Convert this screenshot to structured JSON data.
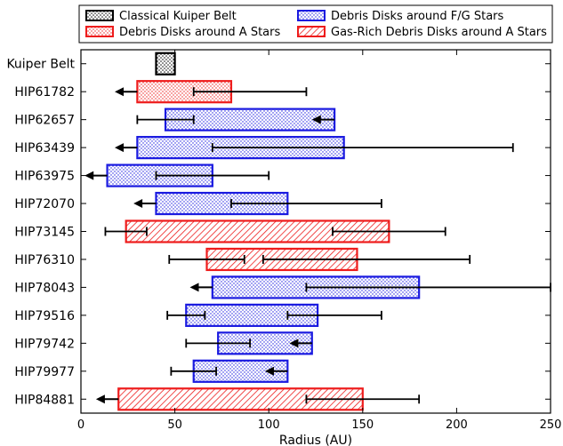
{
  "chart_data": {
    "type": "bar",
    "orientation": "horizontal-range",
    "title": "",
    "xlabel": "Radius (AU)",
    "ylabel": "",
    "xlim": [
      0,
      250
    ],
    "xticks": [
      0,
      50,
      100,
      150,
      200,
      250
    ],
    "grid": false,
    "legend_position": "top",
    "colors": {
      "kuiper": "#000000",
      "a_star": "#ee1c1c",
      "fg_star": "#1a1ae0"
    },
    "legend": [
      {
        "label": "Classical Kuiper Belt",
        "kind": "kuiper"
      },
      {
        "label": "Debris Disks around F/G Stars",
        "kind": "fg"
      },
      {
        "label": "Debris Disks around A Stars",
        "kind": "a"
      },
      {
        "label": "Gas-Rich Debris Disks around A Stars",
        "kind": "gas"
      }
    ],
    "categories": [
      "Kuiper Belt",
      "HIP61782",
      "HIP62657",
      "HIP63439",
      "HIP63975",
      "HIP72070",
      "HIP73145",
      "HIP76310",
      "HIP78043",
      "HIP79516",
      "HIP79742",
      "HIP79977",
      "HIP84881"
    ],
    "disks": [
      {
        "name": "Kuiper Belt",
        "kind": "kuiper",
        "inner": 40,
        "outer": 50,
        "inner_err": null,
        "outer_err": null
      },
      {
        "name": "HIP61782",
        "kind": "a",
        "inner": 30,
        "outer": 80,
        "inner_err": {
          "upper_limit": 18
        },
        "outer_err": {
          "lo": 60,
          "hi": 120
        }
      },
      {
        "name": "HIP62657",
        "kind": "fg",
        "inner": 45,
        "outer": 135,
        "inner_err": {
          "lo": 30,
          "hi": 60
        },
        "outer_err": {
          "upper_limit": 123
        }
      },
      {
        "name": "HIP63439",
        "kind": "fg",
        "inner": 30,
        "outer": 140,
        "inner_err": {
          "upper_limit": 18
        },
        "outer_err": {
          "lo": 70,
          "hi": 230
        }
      },
      {
        "name": "HIP63975",
        "kind": "fg",
        "inner": 14,
        "outer": 70,
        "inner_err": {
          "upper_limit": 2
        },
        "outer_err": {
          "lo": 40,
          "hi": 100
        }
      },
      {
        "name": "HIP72070",
        "kind": "fg",
        "inner": 40,
        "outer": 110,
        "inner_err": {
          "upper_limit": 28
        },
        "outer_err": {
          "lo": 80,
          "hi": 160
        }
      },
      {
        "name": "HIP73145",
        "kind": "gas",
        "inner": 24,
        "outer": 164,
        "inner_err": {
          "lo": 13,
          "hi": 35
        },
        "outer_err": {
          "lo": 134,
          "hi": 194
        }
      },
      {
        "name": "HIP76310",
        "kind": "gas",
        "inner": 67,
        "outer": 147,
        "inner_err": {
          "lo": 47,
          "hi": 87
        },
        "outer_err": {
          "lo": 97,
          "hi": 207
        }
      },
      {
        "name": "HIP78043",
        "kind": "fg",
        "inner": 70,
        "outer": 180,
        "inner_err": {
          "upper_limit": 58
        },
        "outer_err": {
          "lo": 120,
          "hi": 250
        }
      },
      {
        "name": "HIP79516",
        "kind": "fg",
        "inner": 56,
        "outer": 126,
        "inner_err": {
          "lo": 46,
          "hi": 66
        },
        "outer_err": {
          "lo": 110,
          "hi": 160
        }
      },
      {
        "name": "HIP79742",
        "kind": "fg",
        "inner": 73,
        "outer": 123,
        "inner_err": {
          "lo": 56,
          "hi": 90
        },
        "outer_err": {
          "upper_limit": 111
        }
      },
      {
        "name": "HIP79977",
        "kind": "fg",
        "inner": 60,
        "outer": 110,
        "inner_err": {
          "lo": 48,
          "hi": 72
        },
        "outer_err": {
          "upper_limit": 98
        }
      },
      {
        "name": "HIP84881",
        "kind": "gas",
        "inner": 20,
        "outer": 150,
        "inner_err": {
          "upper_limit": 8
        },
        "outer_err": {
          "lo": 120,
          "hi": 180
        }
      }
    ]
  }
}
